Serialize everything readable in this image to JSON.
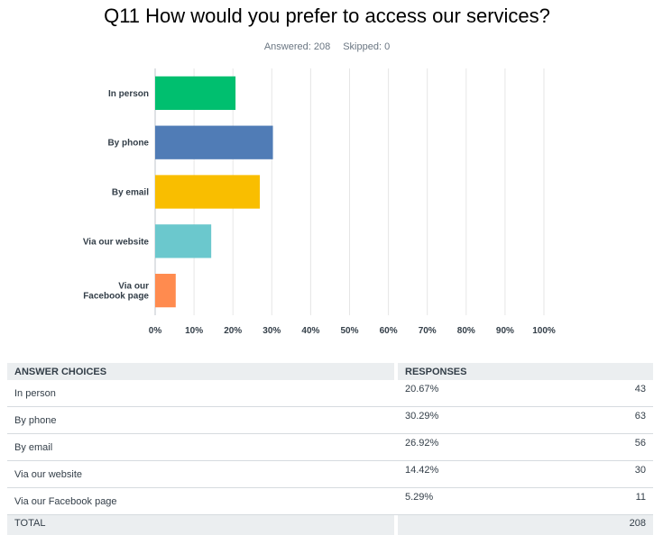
{
  "header": {
    "title": "Q11 How would you prefer to access our services?",
    "answered": "Answered: 208",
    "skipped": "Skipped: 0"
  },
  "chart_data": {
    "type": "bar",
    "orientation": "horizontal",
    "categories": [
      "In person",
      "By phone",
      "By email",
      "Via our website",
      "Via our Facebook page"
    ],
    "category_label_lines": [
      [
        "In person"
      ],
      [
        "By phone"
      ],
      [
        "By email"
      ],
      [
        "Via our website"
      ],
      [
        "Via our",
        "Facebook page"
      ]
    ],
    "values": [
      20.67,
      30.29,
      26.92,
      14.42,
      5.29
    ],
    "colors": [
      "#00bf6f",
      "#507cb6",
      "#f9be00",
      "#6bc8cd",
      "#ff8b4f"
    ],
    "xlim": [
      0,
      100
    ],
    "x_ticks": [
      "0%",
      "10%",
      "20%",
      "30%",
      "40%",
      "50%",
      "60%",
      "70%",
      "80%",
      "90%",
      "100%"
    ],
    "grid": true,
    "title": "Q11 How would you prefer to access our services?"
  },
  "table": {
    "headers": {
      "choices": "ANSWER CHOICES",
      "responses": "RESPONSES"
    },
    "rows": [
      {
        "choice": "In person",
        "percent": "20.67%",
        "count": "43"
      },
      {
        "choice": "By phone",
        "percent": "30.29%",
        "count": "63"
      },
      {
        "choice": "By email",
        "percent": "26.92%",
        "count": "56"
      },
      {
        "choice": "Via our website",
        "percent": "14.42%",
        "count": "30"
      },
      {
        "choice": "Via our Facebook page",
        "percent": "5.29%",
        "count": "11"
      }
    ],
    "total": {
      "label": "TOTAL",
      "count": "208"
    }
  }
}
